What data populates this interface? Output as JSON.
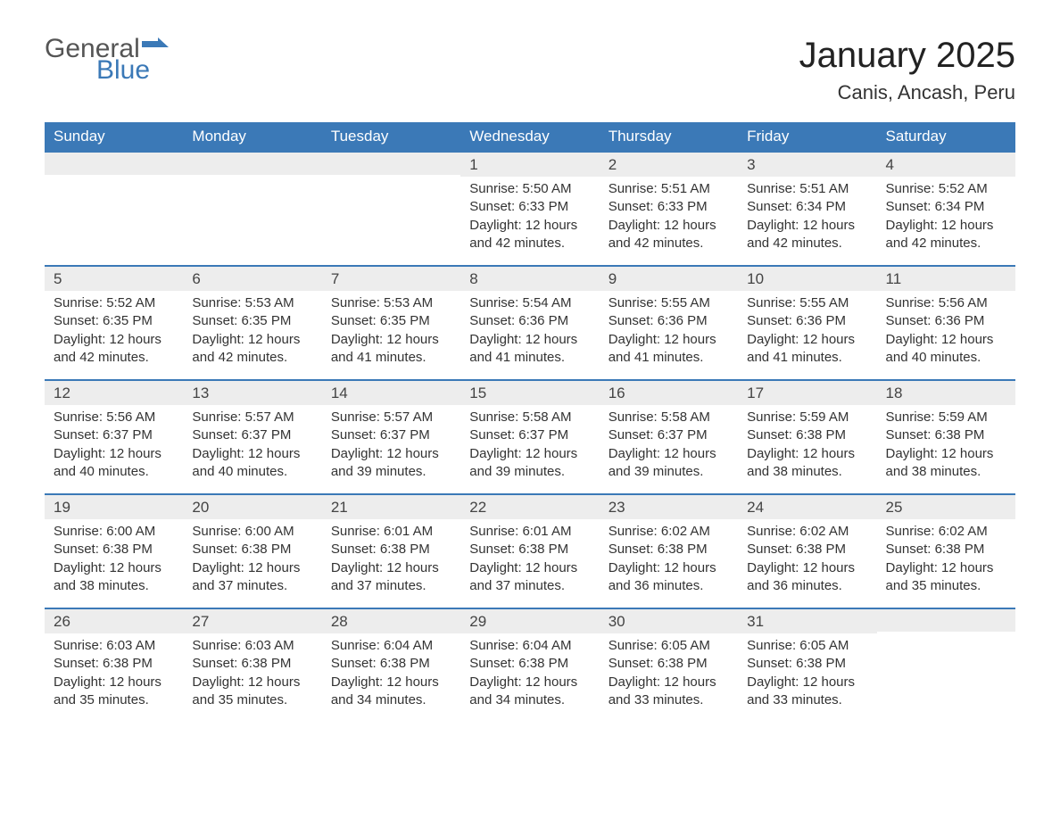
{
  "logo": {
    "word1": "General",
    "word2": "Blue"
  },
  "title": "January 2025",
  "location": "Canis, Ancash, Peru",
  "colors": {
    "header_bg": "#3b79b7",
    "header_text": "#ffffff",
    "daynum_bg": "#ededed",
    "row_border": "#3b79b7",
    "body_text": "#333333",
    "logo_gray": "#555555",
    "logo_blue": "#3b79b7",
    "page_bg": "#ffffff"
  },
  "typography": {
    "title_fontsize": 40,
    "location_fontsize": 22,
    "header_fontsize": 17,
    "daynum_fontsize": 17,
    "body_fontsize": 15
  },
  "weekdays": [
    "Sunday",
    "Monday",
    "Tuesday",
    "Wednesday",
    "Thursday",
    "Friday",
    "Saturday"
  ],
  "weeks": [
    [
      null,
      null,
      null,
      {
        "n": "1",
        "sunrise": "Sunrise: 5:50 AM",
        "sunset": "Sunset: 6:33 PM",
        "daylight1": "Daylight: 12 hours",
        "daylight2": "and 42 minutes."
      },
      {
        "n": "2",
        "sunrise": "Sunrise: 5:51 AM",
        "sunset": "Sunset: 6:33 PM",
        "daylight1": "Daylight: 12 hours",
        "daylight2": "and 42 minutes."
      },
      {
        "n": "3",
        "sunrise": "Sunrise: 5:51 AM",
        "sunset": "Sunset: 6:34 PM",
        "daylight1": "Daylight: 12 hours",
        "daylight2": "and 42 minutes."
      },
      {
        "n": "4",
        "sunrise": "Sunrise: 5:52 AM",
        "sunset": "Sunset: 6:34 PM",
        "daylight1": "Daylight: 12 hours",
        "daylight2": "and 42 minutes."
      }
    ],
    [
      {
        "n": "5",
        "sunrise": "Sunrise: 5:52 AM",
        "sunset": "Sunset: 6:35 PM",
        "daylight1": "Daylight: 12 hours",
        "daylight2": "and 42 minutes."
      },
      {
        "n": "6",
        "sunrise": "Sunrise: 5:53 AM",
        "sunset": "Sunset: 6:35 PM",
        "daylight1": "Daylight: 12 hours",
        "daylight2": "and 42 minutes."
      },
      {
        "n": "7",
        "sunrise": "Sunrise: 5:53 AM",
        "sunset": "Sunset: 6:35 PM",
        "daylight1": "Daylight: 12 hours",
        "daylight2": "and 41 minutes."
      },
      {
        "n": "8",
        "sunrise": "Sunrise: 5:54 AM",
        "sunset": "Sunset: 6:36 PM",
        "daylight1": "Daylight: 12 hours",
        "daylight2": "and 41 minutes."
      },
      {
        "n": "9",
        "sunrise": "Sunrise: 5:55 AM",
        "sunset": "Sunset: 6:36 PM",
        "daylight1": "Daylight: 12 hours",
        "daylight2": "and 41 minutes."
      },
      {
        "n": "10",
        "sunrise": "Sunrise: 5:55 AM",
        "sunset": "Sunset: 6:36 PM",
        "daylight1": "Daylight: 12 hours",
        "daylight2": "and 41 minutes."
      },
      {
        "n": "11",
        "sunrise": "Sunrise: 5:56 AM",
        "sunset": "Sunset: 6:36 PM",
        "daylight1": "Daylight: 12 hours",
        "daylight2": "and 40 minutes."
      }
    ],
    [
      {
        "n": "12",
        "sunrise": "Sunrise: 5:56 AM",
        "sunset": "Sunset: 6:37 PM",
        "daylight1": "Daylight: 12 hours",
        "daylight2": "and 40 minutes."
      },
      {
        "n": "13",
        "sunrise": "Sunrise: 5:57 AM",
        "sunset": "Sunset: 6:37 PM",
        "daylight1": "Daylight: 12 hours",
        "daylight2": "and 40 minutes."
      },
      {
        "n": "14",
        "sunrise": "Sunrise: 5:57 AM",
        "sunset": "Sunset: 6:37 PM",
        "daylight1": "Daylight: 12 hours",
        "daylight2": "and 39 minutes."
      },
      {
        "n": "15",
        "sunrise": "Sunrise: 5:58 AM",
        "sunset": "Sunset: 6:37 PM",
        "daylight1": "Daylight: 12 hours",
        "daylight2": "and 39 minutes."
      },
      {
        "n": "16",
        "sunrise": "Sunrise: 5:58 AM",
        "sunset": "Sunset: 6:37 PM",
        "daylight1": "Daylight: 12 hours",
        "daylight2": "and 39 minutes."
      },
      {
        "n": "17",
        "sunrise": "Sunrise: 5:59 AM",
        "sunset": "Sunset: 6:38 PM",
        "daylight1": "Daylight: 12 hours",
        "daylight2": "and 38 minutes."
      },
      {
        "n": "18",
        "sunrise": "Sunrise: 5:59 AM",
        "sunset": "Sunset: 6:38 PM",
        "daylight1": "Daylight: 12 hours",
        "daylight2": "and 38 minutes."
      }
    ],
    [
      {
        "n": "19",
        "sunrise": "Sunrise: 6:00 AM",
        "sunset": "Sunset: 6:38 PM",
        "daylight1": "Daylight: 12 hours",
        "daylight2": "and 38 minutes."
      },
      {
        "n": "20",
        "sunrise": "Sunrise: 6:00 AM",
        "sunset": "Sunset: 6:38 PM",
        "daylight1": "Daylight: 12 hours",
        "daylight2": "and 37 minutes."
      },
      {
        "n": "21",
        "sunrise": "Sunrise: 6:01 AM",
        "sunset": "Sunset: 6:38 PM",
        "daylight1": "Daylight: 12 hours",
        "daylight2": "and 37 minutes."
      },
      {
        "n": "22",
        "sunrise": "Sunrise: 6:01 AM",
        "sunset": "Sunset: 6:38 PM",
        "daylight1": "Daylight: 12 hours",
        "daylight2": "and 37 minutes."
      },
      {
        "n": "23",
        "sunrise": "Sunrise: 6:02 AM",
        "sunset": "Sunset: 6:38 PM",
        "daylight1": "Daylight: 12 hours",
        "daylight2": "and 36 minutes."
      },
      {
        "n": "24",
        "sunrise": "Sunrise: 6:02 AM",
        "sunset": "Sunset: 6:38 PM",
        "daylight1": "Daylight: 12 hours",
        "daylight2": "and 36 minutes."
      },
      {
        "n": "25",
        "sunrise": "Sunrise: 6:02 AM",
        "sunset": "Sunset: 6:38 PM",
        "daylight1": "Daylight: 12 hours",
        "daylight2": "and 35 minutes."
      }
    ],
    [
      {
        "n": "26",
        "sunrise": "Sunrise: 6:03 AM",
        "sunset": "Sunset: 6:38 PM",
        "daylight1": "Daylight: 12 hours",
        "daylight2": "and 35 minutes."
      },
      {
        "n": "27",
        "sunrise": "Sunrise: 6:03 AM",
        "sunset": "Sunset: 6:38 PM",
        "daylight1": "Daylight: 12 hours",
        "daylight2": "and 35 minutes."
      },
      {
        "n": "28",
        "sunrise": "Sunrise: 6:04 AM",
        "sunset": "Sunset: 6:38 PM",
        "daylight1": "Daylight: 12 hours",
        "daylight2": "and 34 minutes."
      },
      {
        "n": "29",
        "sunrise": "Sunrise: 6:04 AM",
        "sunset": "Sunset: 6:38 PM",
        "daylight1": "Daylight: 12 hours",
        "daylight2": "and 34 minutes."
      },
      {
        "n": "30",
        "sunrise": "Sunrise: 6:05 AM",
        "sunset": "Sunset: 6:38 PM",
        "daylight1": "Daylight: 12 hours",
        "daylight2": "and 33 minutes."
      },
      {
        "n": "31",
        "sunrise": "Sunrise: 6:05 AM",
        "sunset": "Sunset: 6:38 PM",
        "daylight1": "Daylight: 12 hours",
        "daylight2": "and 33 minutes."
      },
      null
    ]
  ]
}
